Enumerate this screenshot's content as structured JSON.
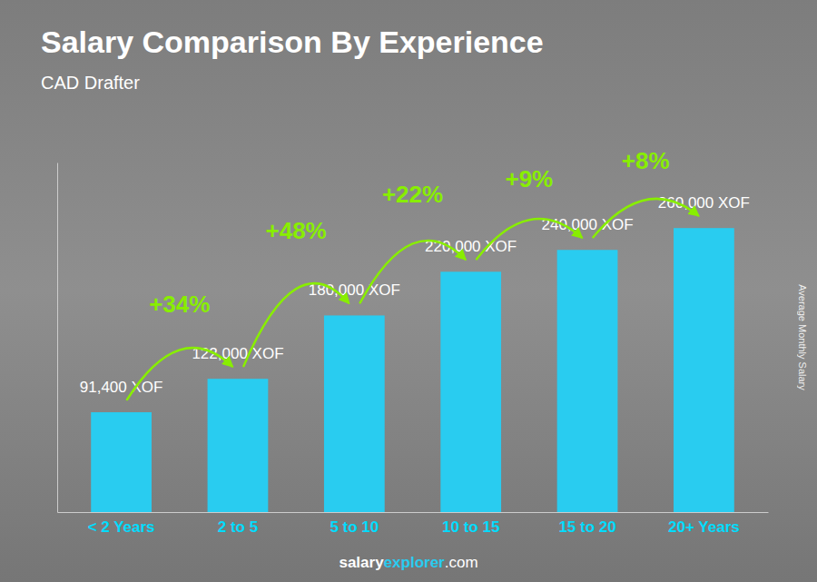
{
  "chart_data": {
    "type": "bar",
    "title": "Salary Comparison By Experience",
    "subtitle": "CAD Drafter",
    "ylabel": "Average Monthly Salary",
    "categories": [
      "< 2 Years",
      "2 to 5",
      "5 to 10",
      "10 to 15",
      "15 to 20",
      "20+ Years"
    ],
    "values": [
      91400,
      122000,
      180000,
      220000,
      240000,
      260000
    ],
    "value_labels": [
      "91,400 XOF",
      "122,000 XOF",
      "180,000 XOF",
      "220,000 XOF",
      "240,000 XOF",
      "260,000 XOF"
    ],
    "data_labels": true,
    "annotations": [
      "+34%",
      "+48%",
      "+22%",
      "+9%",
      "+8%"
    ],
    "footer": [
      "salary",
      "explorer",
      ".com"
    ],
    "color": "#29ccf0",
    "ylim": [
      0,
      320000
    ],
    "tick_labels": "x",
    "grid": false
  }
}
